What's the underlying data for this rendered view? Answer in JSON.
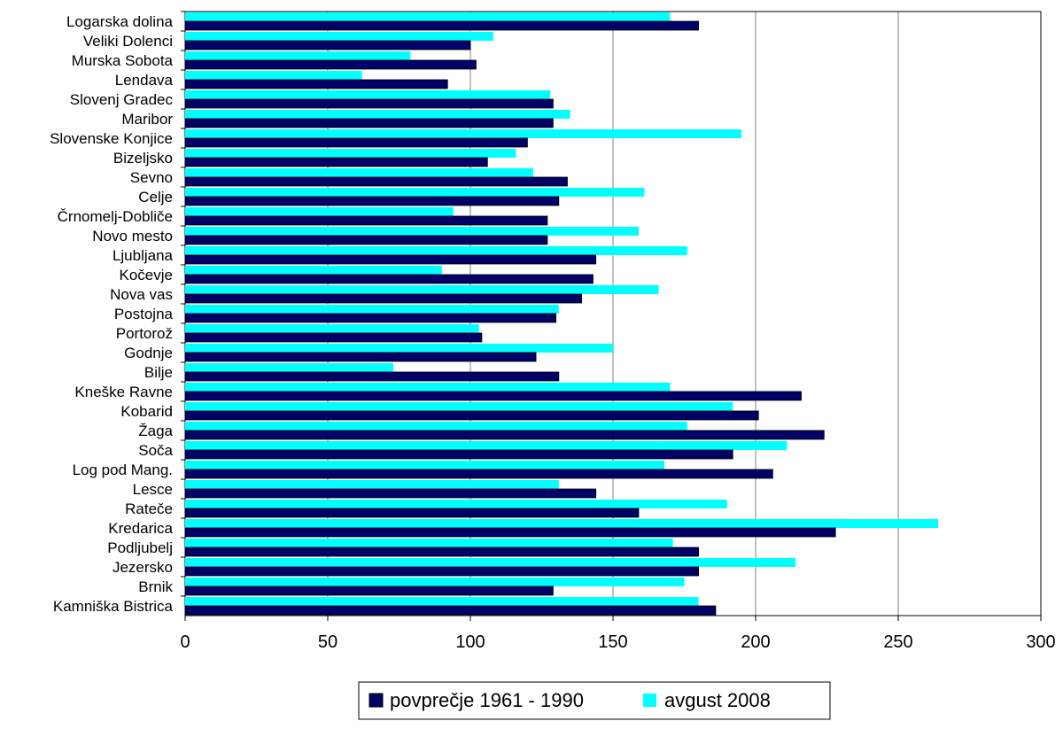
{
  "chart_data": {
    "type": "bar",
    "orientation": "horizontal",
    "categories": [
      "Logarska dolina",
      "Veliki Dolenci",
      "Murska Sobota",
      "Lendava",
      "Slovenj Gradec",
      "Maribor",
      "Slovenske Konjice",
      "Bizeljsko",
      "Sevno",
      "Celje",
      "Črnomelj-Dobliče",
      "Novo mesto",
      "Ljubljana",
      "Kočevje",
      "Nova vas",
      "Postojna",
      "Portorož",
      "Godnje",
      "Bilje",
      "Kneške Ravne",
      "Kobarid",
      "Žaga",
      "Soča",
      "Log pod Mang.",
      "Lesce",
      "Rateče",
      "Kredarica",
      "Podljubelj",
      "Jezersko",
      "Brnik",
      "Kamniška Bistrica"
    ],
    "series": [
      {
        "name": "povprečje 1961 - 1990",
        "color": "#000066",
        "values": [
          180,
          100,
          102,
          92,
          129,
          129,
          120,
          106,
          134,
          131,
          127,
          127,
          144,
          143,
          139,
          130,
          104,
          123,
          131,
          216,
          201,
          224,
          192,
          206,
          144,
          159,
          228,
          180,
          180,
          129,
          186
        ]
      },
      {
        "name": "avgust 2008",
        "color": "#00ffff",
        "values": [
          170,
          108,
          79,
          62,
          128,
          135,
          195,
          116,
          122,
          161,
          94,
          159,
          176,
          90,
          166,
          131,
          103,
          150,
          73,
          170,
          192,
          176,
          211,
          168,
          131,
          190,
          264,
          171,
          214,
          175,
          180
        ]
      }
    ],
    "xlim": [
      0,
      300
    ],
    "xticks": [
      "0",
      "50",
      "100",
      "150",
      "200",
      "250",
      "300"
    ],
    "grid": true,
    "legend_position": "bottom"
  }
}
